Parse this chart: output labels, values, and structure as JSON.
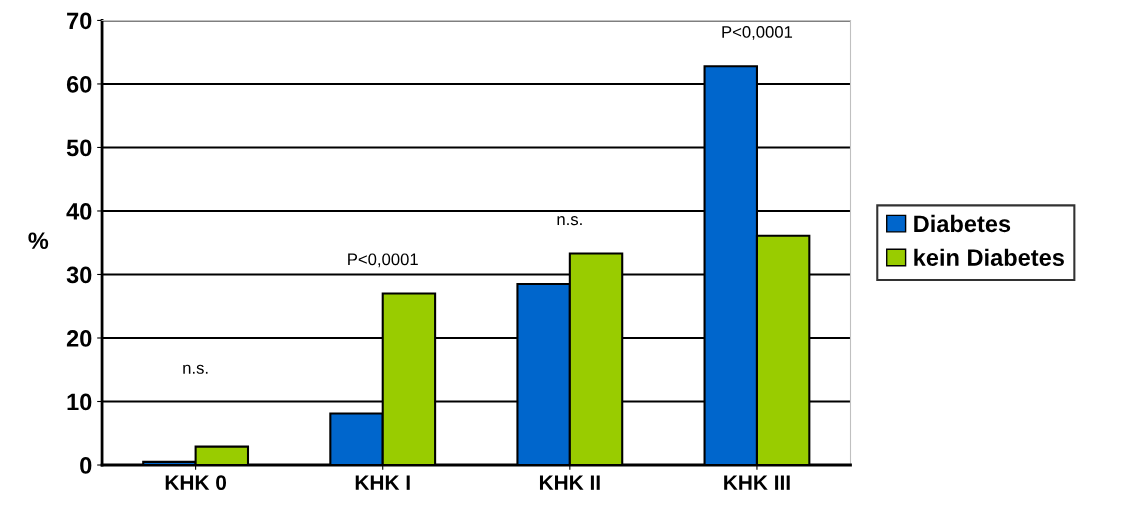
{
  "chart_data": {
    "type": "bar",
    "ylabel": "%",
    "categories": [
      "KHK 0",
      "KHK I",
      "KHK II",
      "KHK III"
    ],
    "series": [
      {
        "name": "Diabetes",
        "color": "#0066cc",
        "values": [
          0.5,
          8.1,
          28.5,
          62.8
        ]
      },
      {
        "name": "kein Diabetes",
        "color": "#99cc00",
        "values": [
          2.9,
          27.0,
          33.3,
          36.1
        ]
      }
    ],
    "ylim": [
      0,
      70
    ],
    "yticks": [
      0,
      10,
      20,
      30,
      40,
      50,
      60,
      70
    ],
    "grid": "y",
    "legend": "right",
    "annotations": [
      "n.s.",
      "P<0,0001",
      "n.s.",
      "P<0,0001"
    ]
  }
}
